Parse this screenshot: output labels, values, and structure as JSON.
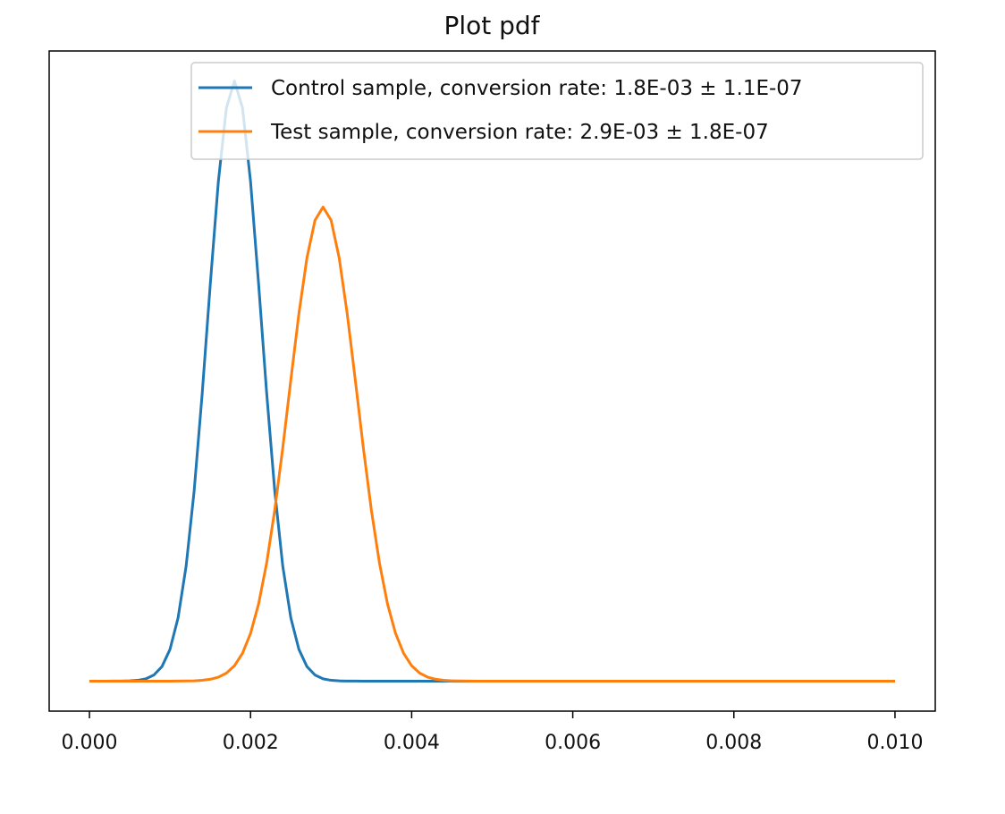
{
  "chart_data": {
    "type": "line",
    "title": "Plot pdf",
    "xlabel": "",
    "ylabel": "",
    "xlim": [
      -0.0005,
      0.0105
    ],
    "ylim": [
      -0.05,
      1.05
    ],
    "xticks": [
      0.0,
      0.002,
      0.004,
      0.006,
      0.008,
      0.01
    ],
    "xtick_labels": [
      "0.000",
      "0.002",
      "0.004",
      "0.006",
      "0.008",
      "0.010"
    ],
    "yticks_visible": false,
    "grid": false,
    "legend_position": "upper right",
    "series": [
      {
        "name": "Control sample, conversion rate: 1.8E-03 ± 1.1E-07",
        "color": "#1f77b4",
        "mean": 0.0018,
        "std": 0.00033,
        "peak": 1.0
      },
      {
        "name": "Test sample, conversion rate: 2.9E-03 ± 1.8E-07",
        "color": "#ff7f0e",
        "mean": 0.0029,
        "std": 0.00042,
        "peak": 0.79
      }
    ],
    "x_range": [
      0.0,
      0.01
    ]
  }
}
